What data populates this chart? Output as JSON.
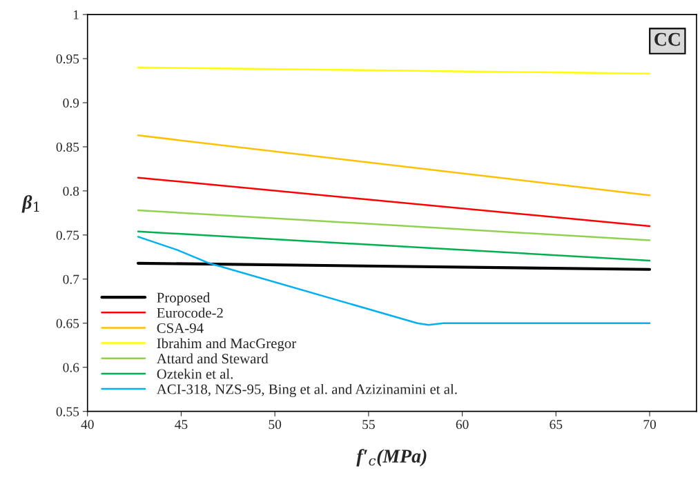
{
  "chart_data": {
    "type": "line",
    "xlabel": "f′$_{c}$(MPa)",
    "ylabel": "β$_{1}$",
    "annotations": [
      "CC"
    ],
    "xlim": [
      40,
      72.5
    ],
    "ylim": [
      0.55,
      1
    ],
    "xticks": [
      40,
      45,
      50,
      55,
      60,
      65,
      70
    ],
    "yticks": [
      0.55,
      0.6,
      0.65,
      0.7,
      0.75,
      0.8,
      0.85,
      0.9,
      0.95,
      1
    ],
    "grid": false,
    "legend": "bottom left",
    "marker": "none",
    "line_style": "solid",
    "series": [
      {
        "name": "Proposed",
        "color": "#000000",
        "x": [
          42.7,
          70
        ],
        "values": [
          0.718,
          0.711
        ]
      },
      {
        "name": "Eurocode-2",
        "color": "#ff0000",
        "x": [
          42.7,
          70
        ],
        "values": [
          0.815,
          0.76
        ]
      },
      {
        "name": "CSA-94",
        "color": "#ffc000",
        "x": [
          42.7,
          70
        ],
        "values": [
          0.863,
          0.795
        ]
      },
      {
        "name": "Ibrahim and MacGregor",
        "color": "#ffff00",
        "x": [
          42.7,
          70
        ],
        "values": [
          0.94,
          0.933
        ]
      },
      {
        "name": "Attard and Steward",
        "color": "#92d050",
        "x": [
          42.7,
          70
        ],
        "values": [
          0.778,
          0.744
        ]
      },
      {
        "name": "Oztekin et al.",
        "color": "#00b050",
        "x": [
          42.7,
          70
        ],
        "values": [
          0.754,
          0.721
        ]
      },
      {
        "name": "ACI-318, NZS-95, Bing et al. and Azizinamini et al.",
        "color": "#00b0f0",
        "x": [
          42.7,
          44.8,
          46.5,
          57.6,
          58.2,
          59,
          70
        ],
        "values": [
          0.748,
          0.733,
          0.718,
          0.65,
          0.648,
          0.65,
          0.65
        ]
      }
    ]
  }
}
